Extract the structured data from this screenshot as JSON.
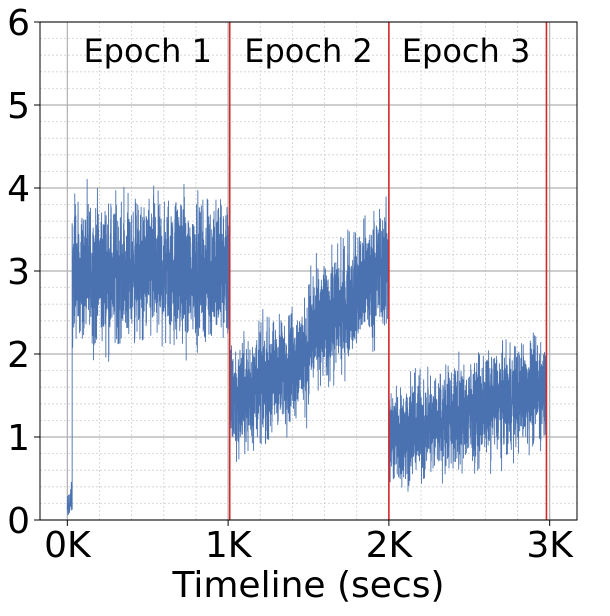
{
  "chart_data": {
    "type": "line",
    "title": "",
    "xlabel": "Timeline (secs)",
    "ylabel": "",
    "xlim": [
      -170,
      3170
    ],
    "ylim": [
      0,
      6
    ],
    "x_ticks": [
      {
        "value": 0,
        "label": "0K"
      },
      {
        "value": 1000,
        "label": "1K"
      },
      {
        "value": 2000,
        "label": "2K"
      },
      {
        "value": 3000,
        "label": "3K"
      }
    ],
    "y_ticks": [
      {
        "value": 0,
        "label": "0"
      },
      {
        "value": 1,
        "label": "1"
      },
      {
        "value": 2,
        "label": "2"
      },
      {
        "value": 3,
        "label": "3"
      },
      {
        "value": 4,
        "label": "4"
      },
      {
        "value": 5,
        "label": "5"
      },
      {
        "value": 6,
        "label": "6"
      }
    ],
    "grid": true,
    "epoch_boundaries": [
      1010,
      2000,
      2980
    ],
    "epoch_annotations": [
      {
        "label": "Epoch 1",
        "x": 500
      },
      {
        "label": "Epoch 2",
        "x": 1500
      },
      {
        "label": "Epoch 3",
        "x": 2480
      }
    ],
    "series": [
      {
        "color": "#4a72b0",
        "segments": [
          {
            "x_start": 0,
            "x_end": 30,
            "mean_start": 0.1,
            "mean_end": 0.3,
            "amplitude": 0.2
          },
          {
            "x_start": 30,
            "x_end": 1010,
            "mean_start": 3.0,
            "mean_end": 3.0,
            "amplitude": 0.75
          },
          {
            "x_start": 1010,
            "x_end": 1500,
            "mean_start": 1.4,
            "mean_end": 2.0,
            "amplitude": 0.6
          },
          {
            "x_start": 1500,
            "x_end": 2000,
            "mean_start": 2.2,
            "mean_end": 3.1,
            "amplitude": 0.65
          },
          {
            "x_start": 2000,
            "x_end": 2980,
            "mean_start": 1.0,
            "mean_end": 1.6,
            "amplitude": 0.55
          }
        ]
      }
    ],
    "colors": {
      "line": "#4a72b0",
      "boundary": "#d62728",
      "grid_major": "#b0b0b0",
      "grid_minor": "#d0d0d0"
    }
  }
}
